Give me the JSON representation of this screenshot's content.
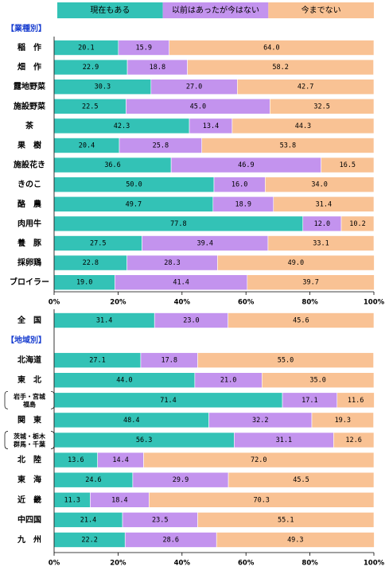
{
  "chart_data": [
    {
      "type": "stacked-bar-horizontal",
      "subtitle": "【業種別】",
      "categories": [
        "稲　作",
        "畑　作",
        "露地野菜",
        "施設野菜",
        "茶",
        "果　樹",
        "施設花き",
        "きのこ",
        "酪　農",
        "肉用牛",
        "養　豚",
        "採卵鶏",
        "ブロイラー"
      ],
      "series": [
        {
          "name": "現在もある",
          "color": "#33c2b6",
          "values": [
            20.1,
            22.9,
            30.3,
            22.5,
            42.3,
            20.4,
            36.6,
            50.0,
            49.7,
            77.8,
            27.5,
            22.8,
            19.0
          ],
          "value_labels": [
            "20.1",
            "22.9",
            "30.3",
            "22.5",
            "42.3",
            "20.4",
            "36.6",
            "50.0",
            "49.7",
            "77.8",
            "27.5",
            "22.8",
            "19.0"
          ]
        },
        {
          "name": "以前はあったが今はない",
          "color": "#c393ee",
          "values": [
            15.9,
            18.8,
            27.0,
            45.0,
            13.4,
            25.8,
            46.9,
            16.0,
            18.9,
            12.0,
            39.4,
            28.3,
            41.4
          ],
          "value_labels": [
            "15.9",
            "18.8",
            "27.0",
            "45.0",
            "13.4",
            "25.8",
            "46.9",
            "16.0",
            "18.9",
            "12.0",
            "39.4",
            "28.3",
            "41.4"
          ]
        },
        {
          "name": "今までない",
          "color": "#f9c294",
          "values": [
            64.0,
            58.2,
            42.7,
            32.5,
            44.3,
            53.8,
            16.5,
            34.0,
            31.4,
            10.2,
            33.1,
            49.0,
            39.7
          ],
          "value_labels": [
            "64.0",
            "58.2",
            "42.7",
            "32.5",
            "44.3",
            "53.8",
            "16.5",
            "34.0",
            "31.4",
            "10.2",
            "33.1",
            "49.0",
            "39.7"
          ]
        }
      ],
      "xlim": [
        0,
        100
      ],
      "xticks": [
        {
          "value": 0,
          "label": "0%"
        },
        {
          "value": 20,
          "label": "20%"
        },
        {
          "value": 40,
          "label": "40%"
        },
        {
          "value": 60,
          "label": "60%"
        },
        {
          "value": 80,
          "label": "80%"
        },
        {
          "value": 100,
          "label": "100%"
        }
      ]
    },
    {
      "type": "stacked-bar-horizontal",
      "subtitle": "【地域別】",
      "categories": [
        "全　国",
        "北海道",
        "東　北",
        "岩手・宮城\n福島",
        "関　東",
        "茨城・栃木\n群馬・千葉",
        "北　陸",
        "東　海",
        "近　畿",
        "中四国",
        "九　州"
      ],
      "series": [
        {
          "color": "#33c2b6",
          "values": [
            31.4,
            27.1,
            44.0,
            71.4,
            48.4,
            56.3,
            13.6,
            24.6,
            11.3,
            21.4,
            22.2
          ],
          "value_labels": [
            "31.4",
            "27.1",
            "44.0",
            "71.4",
            "48.4",
            "56.3",
            "13.6",
            "24.6",
            "11.3",
            "21.4",
            "22.2"
          ]
        },
        {
          "color": "#c393ee",
          "values": [
            23.0,
            17.8,
            21.0,
            17.1,
            32.2,
            31.1,
            14.4,
            29.9,
            18.4,
            23.5,
            28.6
          ],
          "value_labels": [
            "23.0",
            "17.8",
            "21.0",
            "17.1",
            "32.2",
            "31.1",
            "14.4",
            "29.9",
            "18.4",
            "23.5",
            "28.6"
          ]
        },
        {
          "color": "#f9c294",
          "values": [
            45.6,
            55.0,
            35.0,
            11.6,
            19.3,
            12.6,
            72.0,
            45.5,
            70.3,
            55.1,
            49.3
          ],
          "value_labels": [
            "45.6",
            "55.0",
            "35.0",
            "11.6",
            "19.3",
            "12.6",
            "72.0",
            "45.5",
            "70.3",
            "55.1",
            "49.3"
          ]
        }
      ],
      "xlim": [
        0,
        100
      ],
      "xticks": [
        {
          "value": 0,
          "label": "0%"
        },
        {
          "value": 20,
          "label": "20%"
        },
        {
          "value": 40,
          "label": "40%"
        },
        {
          "value": 60,
          "label": "60%"
        },
        {
          "value": 80,
          "label": "80%"
        },
        {
          "value": 100,
          "label": "100%"
        }
      ]
    }
  ]
}
